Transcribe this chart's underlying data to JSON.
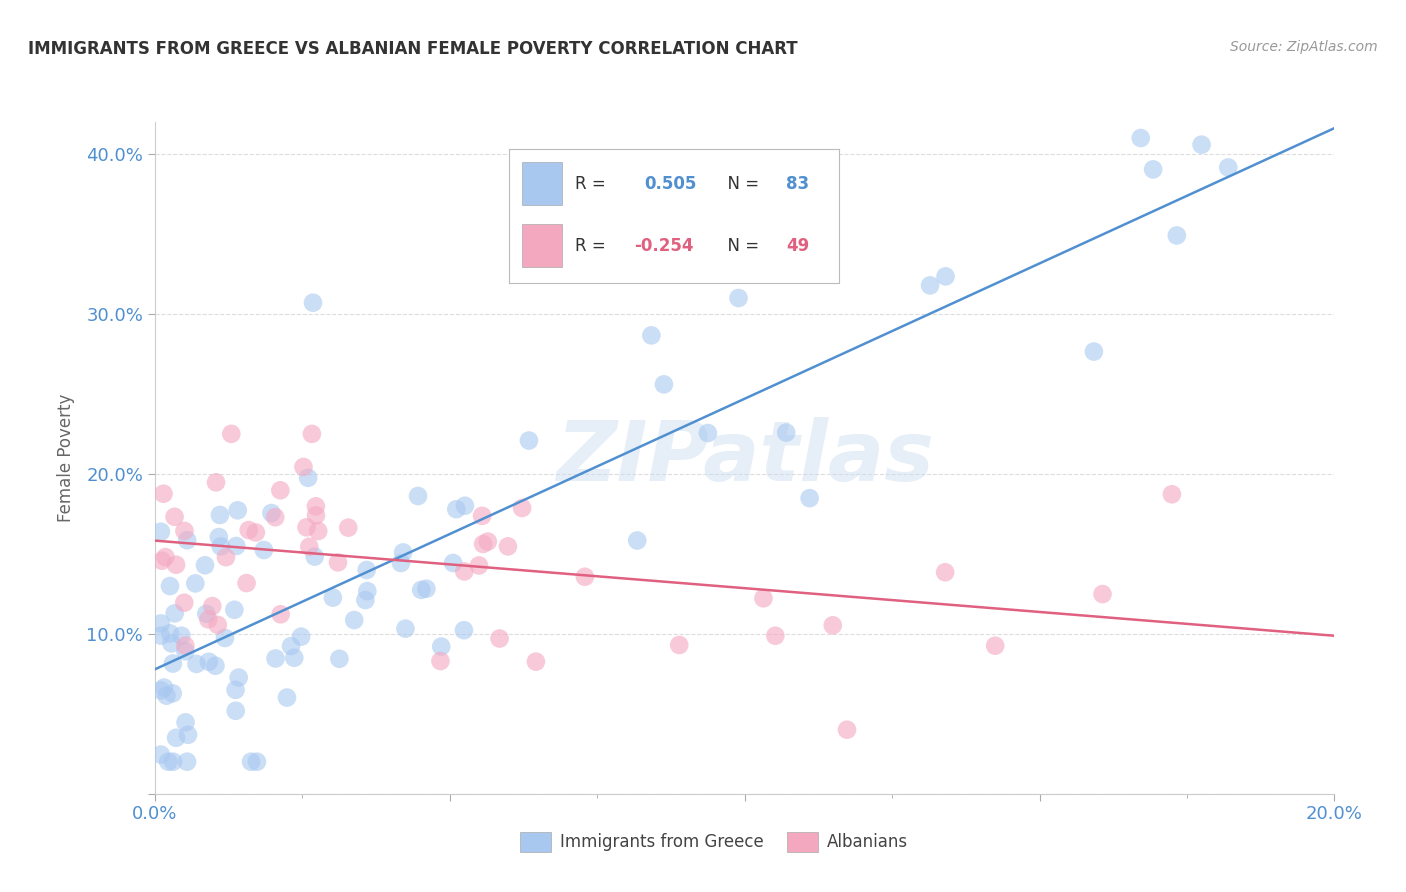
{
  "title": "IMMIGRANTS FROM GREECE VS ALBANIAN FEMALE POVERTY CORRELATION CHART",
  "source": "Source: ZipAtlas.com",
  "ylabel": "Female Poverty",
  "x_min": 0.0,
  "x_max": 0.2,
  "y_min": 0.0,
  "y_max": 0.42,
  "x_tick_positions": [
    0.0,
    0.05,
    0.1,
    0.15,
    0.2
  ],
  "x_tick_labels": [
    "0.0%",
    "",
    "",
    "",
    "20.0%"
  ],
  "y_tick_positions": [
    0.0,
    0.1,
    0.2,
    0.3,
    0.4
  ],
  "y_tick_labels": [
    "",
    "10.0%",
    "20.0%",
    "30.0%",
    "40.0%"
  ],
  "legend_label_blue": "Immigrants from Greece",
  "legend_label_pink": "Albanians",
  "blue_color": "#a8c8f0",
  "pink_color": "#f4a8c0",
  "blue_line_color": "#5090d0",
  "pink_line_color": "#e06080",
  "watermark_text": "ZIPatlas",
  "blue_r": 0.505,
  "blue_n": 83,
  "pink_r": -0.254,
  "pink_n": 49,
  "bg_color": "#ffffff",
  "grid_color": "#dddddd",
  "tick_color": "#5090d0",
  "title_color": "#333333",
  "source_color": "#999999",
  "ylabel_color": "#666666",
  "legend_text_color": "#333333",
  "legend_number_color": "#5090d0"
}
